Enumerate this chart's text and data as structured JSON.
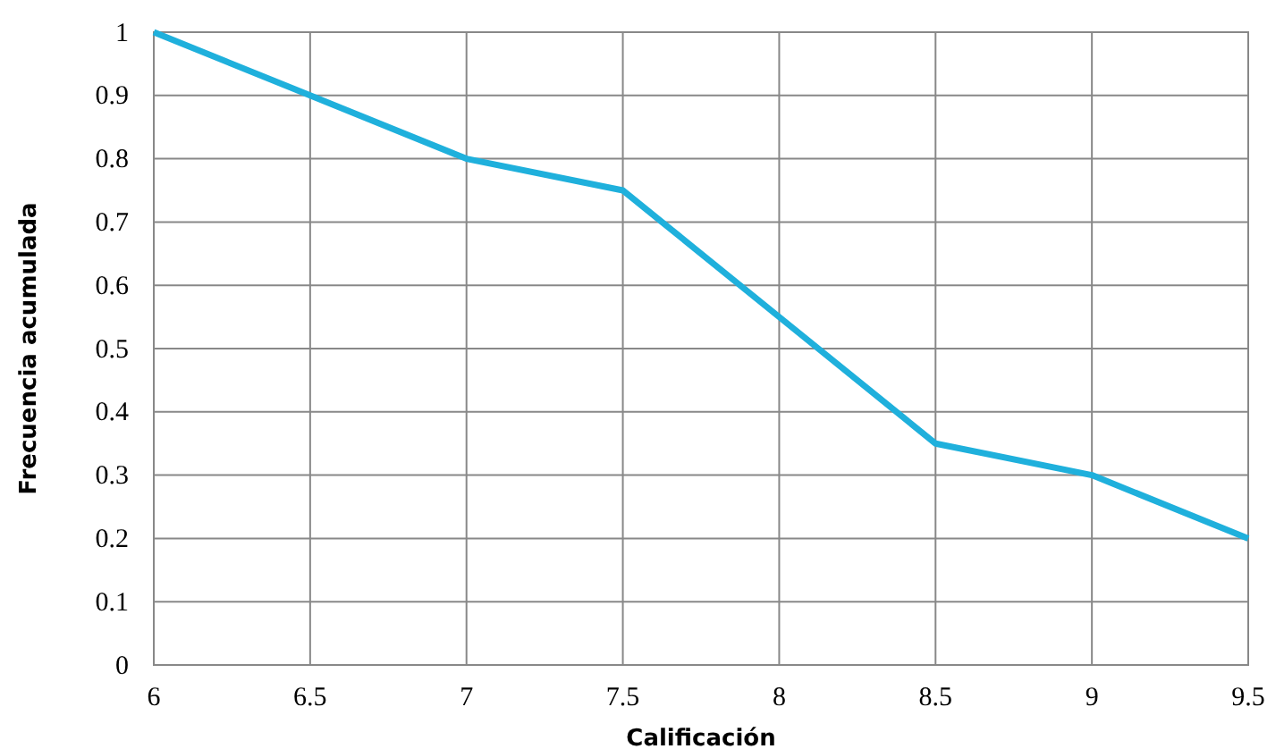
{
  "chart_data": {
    "type": "line",
    "xlabel": "Calificación",
    "ylabel": "Frecuencia acumulada",
    "x": [
      6,
      6.5,
      7,
      7.5,
      8,
      8.5,
      9,
      9.5
    ],
    "series": [
      {
        "color": "#1fb0dc",
        "values": [
          1,
          0.9,
          0.8,
          0.75,
          0.55,
          0.35,
          0.3,
          0.2
        ]
      }
    ],
    "xlim": [
      6,
      9.5
    ],
    "xticks": [
      6,
      6.5,
      7,
      7.5,
      8,
      8.5,
      9,
      9.5
    ],
    "ylim": [
      0,
      1
    ],
    "yticks": [
      0,
      0.1,
      0.2,
      0.3,
      0.4,
      0.5,
      0.6,
      0.7,
      0.8,
      0.9,
      1
    ],
    "grid": true,
    "marker": "none",
    "line_style": "solid"
  }
}
